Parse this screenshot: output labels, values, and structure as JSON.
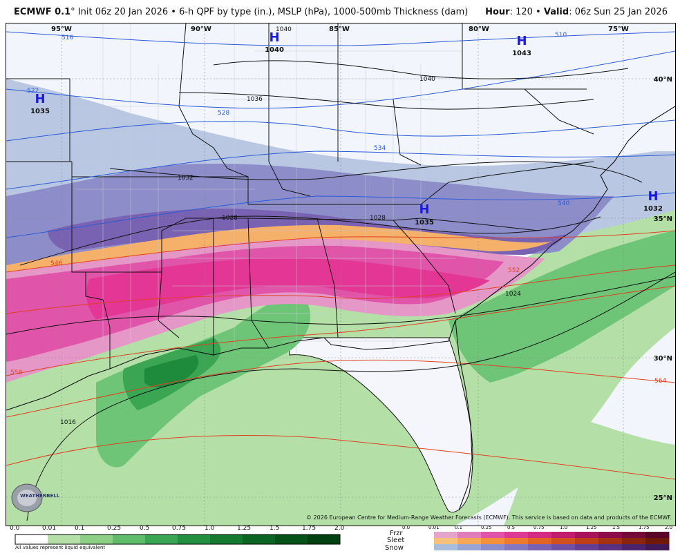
{
  "header": {
    "model": "ECMWF 0.1",
    "init": "Init 06z 20 Jan 2026",
    "product": "6-h QPF by type (in.), MSLP (hPa), 1000-500mb Thickness (dam)",
    "hour_label": "Hour",
    "hour_value": "120",
    "valid_label": "Valid",
    "valid_value": "06z Sun 25 Jan 2026"
  },
  "map": {
    "longitude_labels": [
      "95°W",
      "90°W",
      "85°W",
      "80°W",
      "75°W"
    ],
    "latitude_labels": [
      "40°N",
      "35°N",
      "30°N",
      "25°N"
    ],
    "high_pressure_centers": [
      {
        "symbol": "H",
        "value": "1040"
      },
      {
        "symbol": "H",
        "value": "1043"
      },
      {
        "symbol": "H",
        "value": "1035"
      },
      {
        "symbol": "H",
        "value": "1035"
      },
      {
        "symbol": "H",
        "value": "1032"
      }
    ],
    "isobar_labels": [
      "1040",
      "1036",
      "1032",
      "1028",
      "1028",
      "1024",
      "1016",
      "1040"
    ],
    "thickness_labels": [
      "516",
      "510",
      "522",
      "528",
      "534",
      "540",
      "546",
      "552",
      "558",
      "564"
    ],
    "logo_text": "WEATHERBELL",
    "copyright": "© 2026 European Centre for Medium-Range Weather Forecasts (ECMWF). This service is based on data and products of the ECMWF."
  },
  "legend": {
    "rain_ticks": [
      "0.0",
      "0.01",
      "0.1",
      "0.25",
      "0.5",
      "0.75",
      "1.0",
      "1.25",
      "1.5",
      "1.75",
      "2.0"
    ],
    "rain_colors": [
      "#ffffff",
      "#b4e0a8",
      "#8ccf85",
      "#5ebc6a",
      "#3aa653",
      "#22903f",
      "#137a2f",
      "#0a6523",
      "#045218",
      "#023f11"
    ],
    "footnote": "All values represent liquid equivalent",
    "type_labels": [
      "Frzr",
      "Sleet",
      "Snow"
    ],
    "type_ticks": [
      "0.0",
      "0.01",
      "0.1",
      "0.25",
      "0.5",
      "0.75",
      "1.0",
      "1.25",
      "1.5",
      "1.75",
      "2.0"
    ],
    "frzr_colors": [
      "#e3a6c9",
      "#e07dbb",
      "#e055aa",
      "#dd3a96",
      "#d42a83",
      "#c11c6e",
      "#a8135b",
      "#8e0c49",
      "#740838",
      "#5a0429"
    ],
    "sleet_colors": [
      "#f6c27b",
      "#f5a958",
      "#f2903e",
      "#ec7a30",
      "#e16325",
      "#d1501d",
      "#bc3f17",
      "#a43111",
      "#8a240c",
      "#701908"
    ],
    "snow_colors": [
      "#a9bddc",
      "#9aa5d4",
      "#8d8dca",
      "#8377bf",
      "#7a62b2",
      "#7050a3",
      "#653f92",
      "#5a3180",
      "#4d246c",
      "#401957"
    ]
  }
}
